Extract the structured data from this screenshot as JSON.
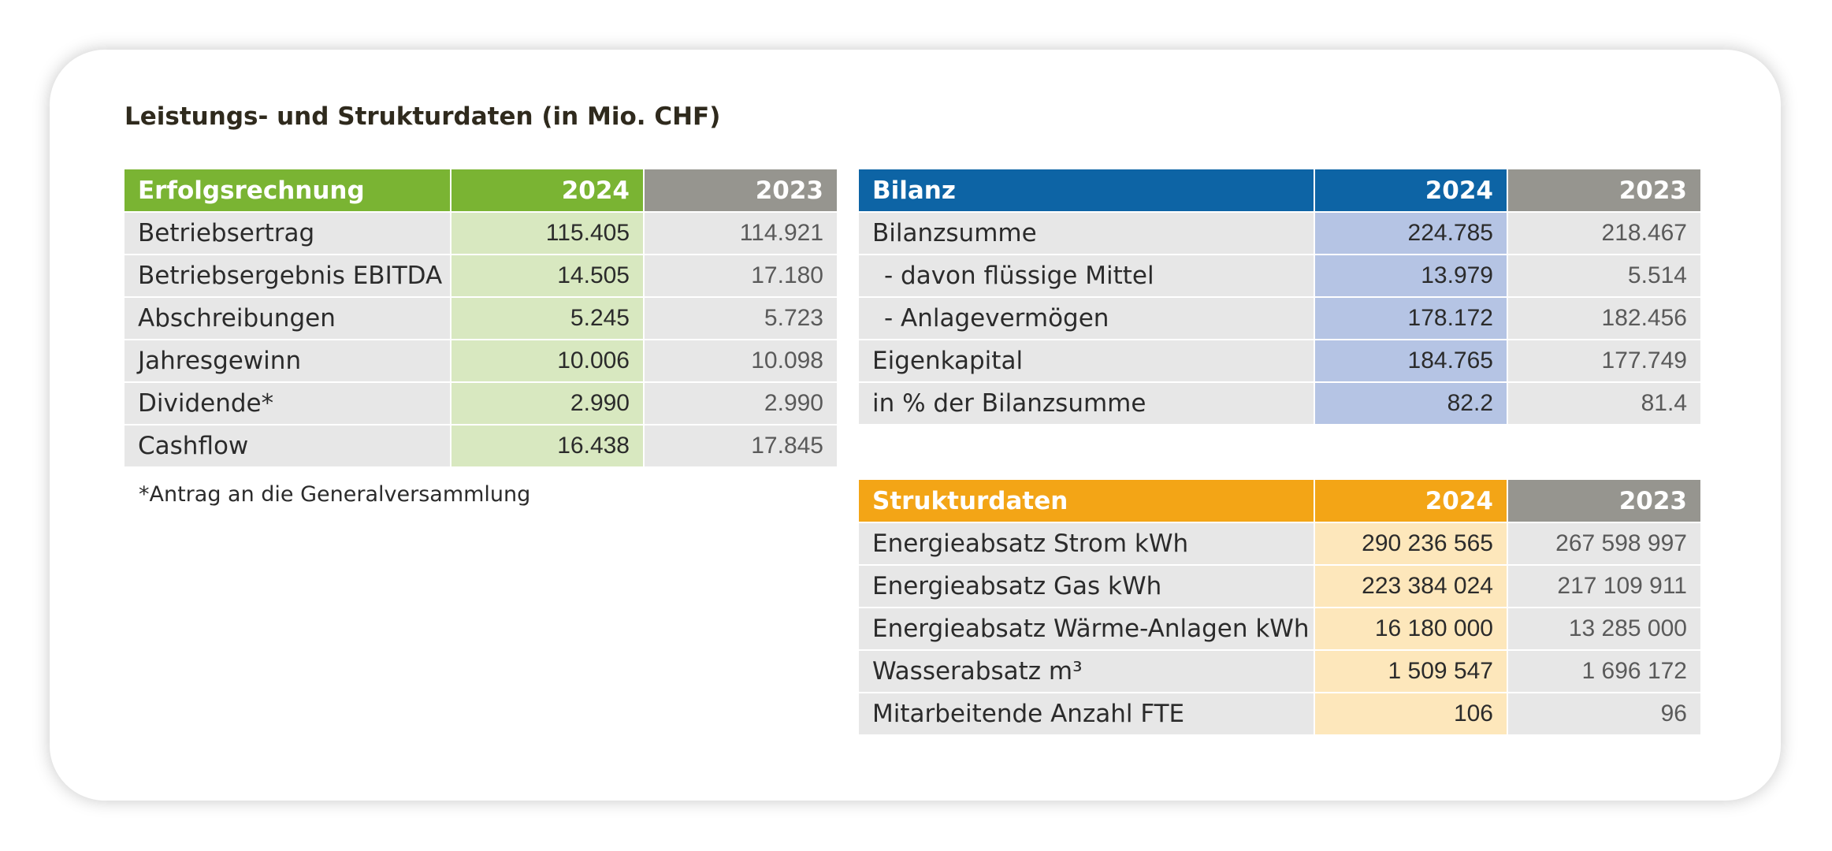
{
  "title": "Leistungs- und Strukturdaten (in Mio. CHF)",
  "erfolgsrechnung": {
    "header": {
      "label": "Erfolgsrechnung",
      "year_current": "2024",
      "year_previous": "2023"
    },
    "rows": [
      {
        "label": "Betriebsertrag",
        "current": "115.405",
        "previous": "114.921"
      },
      {
        "label": "Betriebsergebnis EBITDA",
        "current": "14.505",
        "previous": "17.180"
      },
      {
        "label": "Abschreibungen",
        "current": "5.245",
        "previous": "5.723"
      },
      {
        "label": "Jahresgewinn",
        "current": "10.006",
        "previous": "10.098"
      },
      {
        "label": "Dividende*",
        "current": "2.990",
        "previous": "2.990"
      },
      {
        "label": "Cashflow",
        "current": "16.438",
        "previous": "17.845"
      }
    ],
    "footnote": "*Antrag an die Generalversammlung"
  },
  "bilanz": {
    "header": {
      "label": "Bilanz",
      "year_current": "2024",
      "year_previous": "2023"
    },
    "rows": [
      {
        "label": "Bilanzsumme",
        "current": "224.785",
        "previous": "218.467"
      },
      {
        "label": "- davon flüssige Mittel",
        "current": "13.979",
        "previous": "5.514"
      },
      {
        "label": "- Anlagevermögen",
        "current": "178.172",
        "previous": "182.456"
      },
      {
        "label": "Eigenkapital",
        "current": "184.765",
        "previous": "177.749"
      },
      {
        "label": "in % der Bilanzsumme",
        "current": "82.2",
        "previous": "81.4"
      }
    ]
  },
  "strukturdaten": {
    "header": {
      "label": "Strukturdaten",
      "year_current": "2024",
      "year_previous": "2023"
    },
    "rows": [
      {
        "label": "Energieabsatz Strom kWh",
        "current": "290 236 565",
        "previous": "267 598 997"
      },
      {
        "label": "Energieabsatz Gas kWh",
        "current": "223 384 024",
        "previous": "217 109 911"
      },
      {
        "label": "Energieabsatz Wärme-Anlagen kWh",
        "current": "16 180 000",
        "previous": "13 285 000"
      },
      {
        "label": "Wasserabsatz m³",
        "current": "1 509 547",
        "previous": "1 696 172"
      },
      {
        "label": "Mitarbeitende Anzahl FTE",
        "current": "106",
        "previous": "96"
      }
    ]
  },
  "colors": {
    "erfolg_header": "#7ab433",
    "erfolg_current_cell": "#d8e8c0",
    "bilanz_header": "#0d64a5",
    "bilanz_current_cell": "#b5c4e4",
    "struktur_header": "#f3a516",
    "struktur_current_cell": "#fde7bb",
    "previous_header": "#96958f",
    "row_background": "#e7e7e7"
  }
}
